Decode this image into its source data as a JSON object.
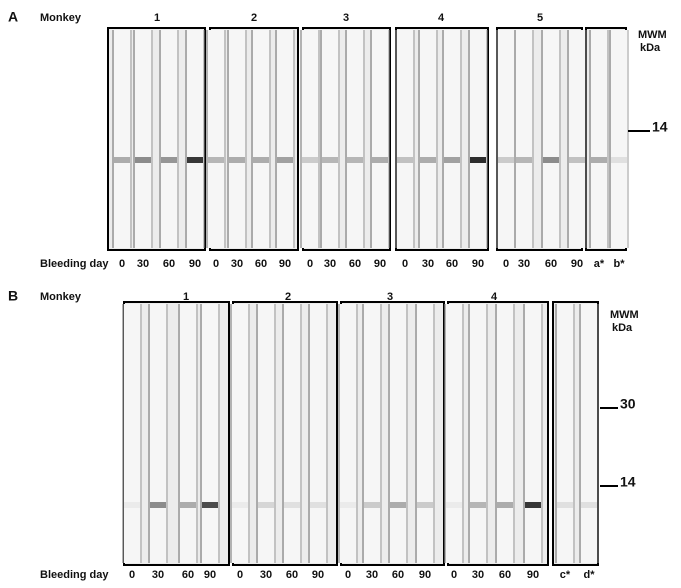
{
  "panels": [
    {
      "label": "A",
      "row_title": "Monkey",
      "groups": [
        "1",
        "2",
        "3",
        "4",
        "5"
      ],
      "mwm_title": "MWM",
      "mwm_unit": "kDa",
      "markers": [
        "14"
      ],
      "x_title": "Bleeding day",
      "lanes": [
        "0",
        "30",
        "60",
        "90",
        "0",
        "30",
        "60",
        "90",
        "0",
        "30",
        "60",
        "90",
        "0",
        "30",
        "60",
        "90",
        "0",
        "30",
        "60",
        "90",
        "a*",
        "b*"
      ]
    },
    {
      "label": "B",
      "row_title": "Monkey",
      "groups": [
        "1",
        "2",
        "3",
        "4"
      ],
      "mwm_title": "MWM",
      "mwm_unit": "kDa",
      "markers": [
        "30",
        "14"
      ],
      "x_title": "Bleeding day",
      "lanes": [
        "0",
        "30",
        "60",
        "90",
        "0",
        "30",
        "60",
        "90",
        "0",
        "30",
        "60",
        "90",
        "0",
        "30",
        "60",
        "90",
        "c*",
        "d*"
      ]
    }
  ]
}
